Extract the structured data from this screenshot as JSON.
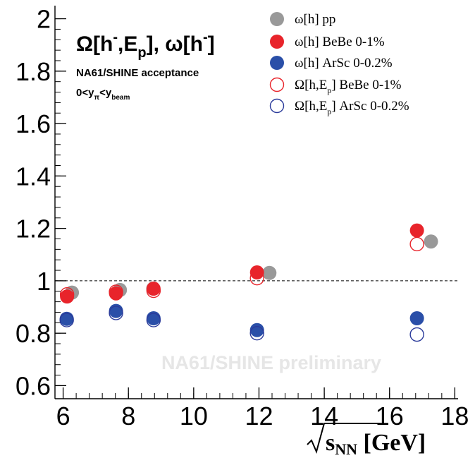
{
  "chart_data": {
    "type": "scatter",
    "title": "Ω[h⁻,E_p], ω[h⁻]",
    "subtitle": "NA61/SHINE acceptance",
    "cut_label": "0<y_π<y_beam",
    "watermark": "NA61/SHINE preliminary",
    "xlabel": "√s_NN [GeV]",
    "ylabel": "",
    "xlim": [
      5.75,
      18.1
    ],
    "ylim": [
      0.55,
      2.05
    ],
    "x_ticks": [
      "6",
      "8",
      "10",
      "12",
      "14",
      "16",
      "18"
    ],
    "y_ticks": [
      "0.6",
      "0.8",
      "1",
      "1.2",
      "1.4",
      "1.6",
      "1.8",
      "2"
    ],
    "reference_line": 1.0,
    "legend_position": "top-right",
    "series": [
      {
        "name": "ω[h] pp",
        "marker": "filled",
        "color": "#999999",
        "points": [
          {
            "x": 6.27,
            "y": 0.955
          },
          {
            "x": 7.74,
            "y": 0.965
          },
          {
            "x": 8.76,
            "y": 0.97
          },
          {
            "x": 12.32,
            "y": 1.03
          },
          {
            "x": 17.27,
            "y": 1.15
          }
        ]
      },
      {
        "name": "ω[h] BeBe 0-1%",
        "marker": "filled",
        "color": "#e8242b",
        "points": [
          {
            "x": 6.12,
            "y": 0.94
          },
          {
            "x": 7.62,
            "y": 0.952
          },
          {
            "x": 8.77,
            "y": 0.97
          },
          {
            "x": 11.94,
            "y": 1.032
          },
          {
            "x": 16.84,
            "y": 1.192
          }
        ]
      },
      {
        "name": "ω[h] ArSc 0-0.2%",
        "marker": "filled",
        "color": "#2a4fa8",
        "points": [
          {
            "x": 6.11,
            "y": 0.855
          },
          {
            "x": 7.62,
            "y": 0.885
          },
          {
            "x": 8.77,
            "y": 0.857
          },
          {
            "x": 11.94,
            "y": 0.812
          },
          {
            "x": 16.84,
            "y": 0.857
          }
        ]
      },
      {
        "name": "Ω[h,E_p] BeBe 0-1%",
        "marker": "open",
        "color": "#e8242b",
        "points": [
          {
            "x": 6.12,
            "y": 0.948
          },
          {
            "x": 7.62,
            "y": 0.958
          },
          {
            "x": 8.77,
            "y": 0.962
          },
          {
            "x": 11.94,
            "y": 1.01
          },
          {
            "x": 16.84,
            "y": 1.14
          }
        ]
      },
      {
        "name": "Ω[h,E_p] ArSc 0-0.2%",
        "marker": "open",
        "color": "#2a3a9a",
        "points": [
          {
            "x": 6.11,
            "y": 0.85
          },
          {
            "x": 7.62,
            "y": 0.877
          },
          {
            "x": 8.77,
            "y": 0.85
          },
          {
            "x": 11.94,
            "y": 0.8
          },
          {
            "x": 16.84,
            "y": 0.795
          }
        ]
      }
    ]
  }
}
